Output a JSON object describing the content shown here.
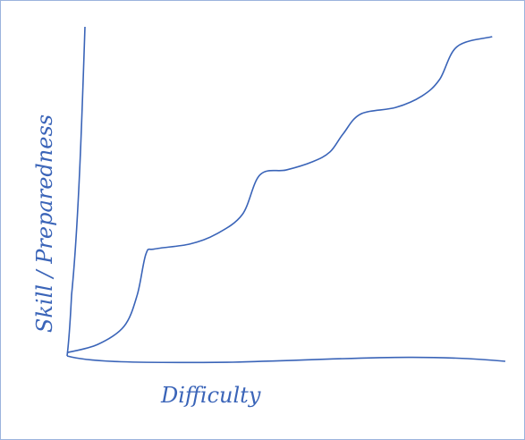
{
  "chart_data": {
    "type": "line",
    "x_label": "Difficulty",
    "y_label": "Skill / Preparedness",
    "color": "#3a64b8",
    "xlim": [
      0,
      100
    ],
    "ylim": [
      0,
      100
    ],
    "x": [
      0,
      7,
      13,
      16,
      18,
      20,
      28,
      34,
      40,
      44,
      50,
      56,
      60,
      63,
      67,
      75,
      81,
      85,
      89,
      97
    ],
    "values": [
      1,
      3.5,
      9,
      18.5,
      31,
      32.5,
      34,
      37,
      43,
      55,
      56.5,
      59,
      62,
      67.5,
      73.5,
      75.5,
      79,
      84,
      94,
      97
    ]
  }
}
